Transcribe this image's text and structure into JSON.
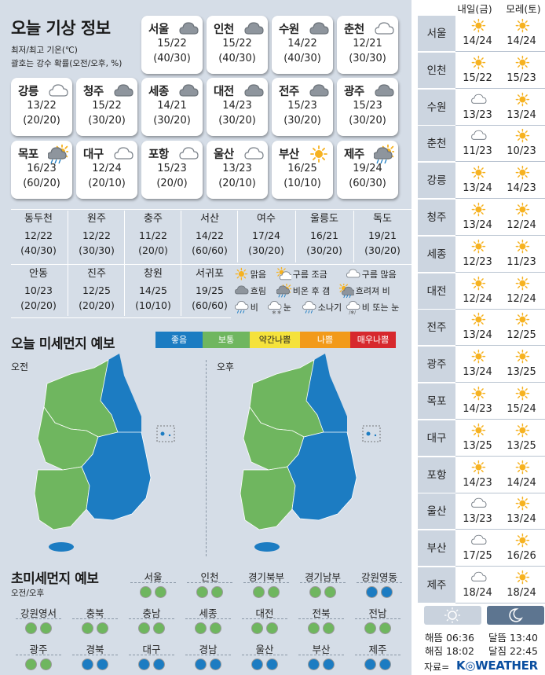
{
  "title": "오늘 기상 정보",
  "subtitle_line1": "최저/최고 기온(℃)",
  "subtitle_line2": "괄호는 강수 확률(오전/오후, %)",
  "cards": [
    {
      "city": "서울",
      "temp": "15/22",
      "rain": "(40/30)",
      "icon": "cloud-icon"
    },
    {
      "city": "인천",
      "temp": "15/22",
      "rain": "(40/30)",
      "icon": "cloud-icon"
    },
    {
      "city": "수원",
      "temp": "14/22",
      "rain": "(40/30)",
      "icon": "cloud-icon"
    },
    {
      "city": "춘천",
      "temp": "12/21",
      "rain": "(30/30)",
      "icon": "cloud-light-icon"
    },
    {
      "city": "강릉",
      "temp": "13/22",
      "rain": "(20/20)",
      "icon": "cloud-light-icon"
    },
    {
      "city": "청주",
      "temp": "15/22",
      "rain": "(30/20)",
      "icon": "cloud-icon"
    },
    {
      "city": "세종",
      "temp": "14/21",
      "rain": "(30/20)",
      "icon": "cloud-icon"
    },
    {
      "city": "대전",
      "temp": "14/23",
      "rain": "(30/20)",
      "icon": "cloud-icon"
    },
    {
      "city": "전주",
      "temp": "15/23",
      "rain": "(30/20)",
      "icon": "cloud-icon"
    },
    {
      "city": "광주",
      "temp": "15/23",
      "rain": "(30/20)",
      "icon": "cloud-icon"
    },
    {
      "city": "목포",
      "temp": "16/23",
      "rain": "(60/20)",
      "icon": "rain-then-clear-icon"
    },
    {
      "city": "대구",
      "temp": "12/24",
      "rain": "(20/10)",
      "icon": "cloud-light-icon"
    },
    {
      "city": "포항",
      "temp": "15/23",
      "rain": "(20/0)",
      "icon": "cloud-light-icon"
    },
    {
      "city": "울산",
      "temp": "13/23",
      "rain": "(20/10)",
      "icon": "cloud-light-icon"
    },
    {
      "city": "부산",
      "temp": "16/25",
      "rain": "(10/10)",
      "icon": "sun-icon"
    },
    {
      "city": "제주",
      "temp": "19/24",
      "rain": "(60/30)",
      "icon": "rain-then-clear-icon"
    }
  ],
  "small_cities_row1": [
    {
      "city": "동두천",
      "temp": "12/22",
      "rain": "(40/30)"
    },
    {
      "city": "원주",
      "temp": "12/22",
      "rain": "(30/30)"
    },
    {
      "city": "충주",
      "temp": "11/22",
      "rain": "(20/0)"
    },
    {
      "city": "서산",
      "temp": "14/22",
      "rain": "(60/60)"
    },
    {
      "city": "여수",
      "temp": "17/24",
      "rain": "(30/20)"
    },
    {
      "city": "울릉도",
      "temp": "16/21",
      "rain": "(30/20)"
    },
    {
      "city": "독도",
      "temp": "19/21",
      "rain": "(30/20)"
    }
  ],
  "small_cities_row2": [
    {
      "city": "안동",
      "temp": "10/23",
      "rain": "(20/20)"
    },
    {
      "city": "진주",
      "temp": "12/25",
      "rain": "(20/20)"
    },
    {
      "city": "창원",
      "temp": "14/25",
      "rain": "(10/10)"
    },
    {
      "city": "서귀포",
      "temp": "19/25",
      "rain": "(60/60)"
    }
  ],
  "legend": [
    {
      "label": "맑음",
      "icon": "sun-icon"
    },
    {
      "label": "구름 조금",
      "icon": "sun-cloud-icon"
    },
    {
      "label": "구름 많음",
      "icon": "cloud-light-icon"
    },
    {
      "label": "흐림",
      "icon": "cloud-icon"
    },
    {
      "label": "비온 후 갬",
      "icon": "rain-then-clear-icon"
    },
    {
      "label": "흐려져 비",
      "icon": "cloudy-then-rain-icon"
    },
    {
      "label": "비",
      "icon": "rain-icon"
    },
    {
      "label": "눈",
      "icon": "snow-icon"
    },
    {
      "label": "소나기",
      "icon": "shower-icon"
    },
    {
      "label": "비 또는 눈",
      "icon": "rain-or-snow-icon"
    }
  ],
  "dust_title": "오늘 미세먼지 예보",
  "dust_legend": [
    {
      "label": "좋음",
      "color": "#1c7cc2"
    },
    {
      "label": "보통",
      "color": "#6fb65f"
    },
    {
      "label": "약간나쁨",
      "color": "#f5e23b"
    },
    {
      "label": "나쁨",
      "color": "#f29a1a"
    },
    {
      "label": "매우나쁨",
      "color": "#d7282d"
    }
  ],
  "am_label": "오전",
  "pm_label": "오후",
  "fine_title": "초미세먼지 예보",
  "fine_sub": "오전/오후",
  "fine_regions": [
    {
      "name": "서울",
      "am": "보통",
      "pm": "보통"
    },
    {
      "name": "인천",
      "am": "보통",
      "pm": "보통"
    },
    {
      "name": "경기북부",
      "am": "보통",
      "pm": "보통"
    },
    {
      "name": "경기남부",
      "am": "보통",
      "pm": "보통"
    },
    {
      "name": "강원영동",
      "am": "좋음",
      "pm": "좋음"
    },
    {
      "name": "강원영서",
      "am": "보통",
      "pm": "보통"
    },
    {
      "name": "충북",
      "am": "보통",
      "pm": "보통"
    },
    {
      "name": "충남",
      "am": "보통",
      "pm": "보통"
    },
    {
      "name": "세종",
      "am": "보통",
      "pm": "보통"
    },
    {
      "name": "대전",
      "am": "보통",
      "pm": "보통"
    },
    {
      "name": "전북",
      "am": "보통",
      "pm": "보통"
    },
    {
      "name": "전남",
      "am": "보통",
      "pm": "보통"
    },
    {
      "name": "광주",
      "am": "보통",
      "pm": "보통"
    },
    {
      "name": "경북",
      "am": "좋음",
      "pm": "좋음"
    },
    {
      "name": "대구",
      "am": "좋음",
      "pm": "좋음"
    },
    {
      "name": "경남",
      "am": "좋음",
      "pm": "좋음"
    },
    {
      "name": "울산",
      "am": "좋음",
      "pm": "좋음"
    },
    {
      "name": "부산",
      "am": "좋음",
      "pm": "좋음"
    },
    {
      "name": "제주",
      "am": "좋음",
      "pm": "좋음"
    }
  ],
  "forecast_headers": [
    "내일(금)",
    "모레(토)"
  ],
  "forecast": [
    {
      "city": "서울",
      "d1": {
        "icon": "sun-icon",
        "temp": "14/24"
      },
      "d2": {
        "icon": "sun-icon",
        "temp": "14/24"
      }
    },
    {
      "city": "인천",
      "d1": {
        "icon": "sun-icon",
        "temp": "15/22"
      },
      "d2": {
        "icon": "sun-icon",
        "temp": "15/23"
      }
    },
    {
      "city": "수원",
      "d1": {
        "icon": "cloud-light-icon",
        "temp": "13/23"
      },
      "d2": {
        "icon": "sun-icon",
        "temp": "13/24"
      }
    },
    {
      "city": "춘천",
      "d1": {
        "icon": "cloud-light-icon",
        "temp": "11/23"
      },
      "d2": {
        "icon": "sun-icon",
        "temp": "10/23"
      }
    },
    {
      "city": "강릉",
      "d1": {
        "icon": "sun-icon",
        "temp": "13/24"
      },
      "d2": {
        "icon": "sun-icon",
        "temp": "14/23"
      }
    },
    {
      "city": "청주",
      "d1": {
        "icon": "sun-icon",
        "temp": "13/24"
      },
      "d2": {
        "icon": "sun-icon",
        "temp": "12/24"
      }
    },
    {
      "city": "세종",
      "d1": {
        "icon": "sun-icon",
        "temp": "12/23"
      },
      "d2": {
        "icon": "sun-icon",
        "temp": "11/23"
      }
    },
    {
      "city": "대전",
      "d1": {
        "icon": "sun-icon",
        "temp": "12/24"
      },
      "d2": {
        "icon": "sun-icon",
        "temp": "12/24"
      }
    },
    {
      "city": "전주",
      "d1": {
        "icon": "sun-icon",
        "temp": "13/24"
      },
      "d2": {
        "icon": "sun-icon",
        "temp": "12/25"
      }
    },
    {
      "city": "광주",
      "d1": {
        "icon": "sun-icon",
        "temp": "13/24"
      },
      "d2": {
        "icon": "sun-icon",
        "temp": "13/25"
      }
    },
    {
      "city": "목포",
      "d1": {
        "icon": "sun-icon",
        "temp": "14/23"
      },
      "d2": {
        "icon": "sun-icon",
        "temp": "15/24"
      }
    },
    {
      "city": "대구",
      "d1": {
        "icon": "sun-icon",
        "temp": "13/25"
      },
      "d2": {
        "icon": "sun-icon",
        "temp": "13/25"
      }
    },
    {
      "city": "포항",
      "d1": {
        "icon": "sun-icon",
        "temp": "14/23"
      },
      "d2": {
        "icon": "sun-icon",
        "temp": "14/24"
      }
    },
    {
      "city": "울산",
      "d1": {
        "icon": "cloud-light-icon",
        "temp": "13/23"
      },
      "d2": {
        "icon": "sun-icon",
        "temp": "13/24"
      }
    },
    {
      "city": "부산",
      "d1": {
        "icon": "cloud-light-icon",
        "temp": "17/25"
      },
      "d2": {
        "icon": "sun-icon",
        "temp": "16/26"
      }
    },
    {
      "city": "제주",
      "d1": {
        "icon": "cloud-light-icon",
        "temp": "18/24"
      },
      "d2": {
        "icon": "sun-icon",
        "temp": "18/24"
      }
    }
  ],
  "sunrise": "해뜸 06:36",
  "sunset": "해짐 18:02",
  "moonrise": "달뜸 13:40",
  "moonset": "달짐 22:45",
  "source_label": "자료=",
  "brand": "K◎WEATHER"
}
